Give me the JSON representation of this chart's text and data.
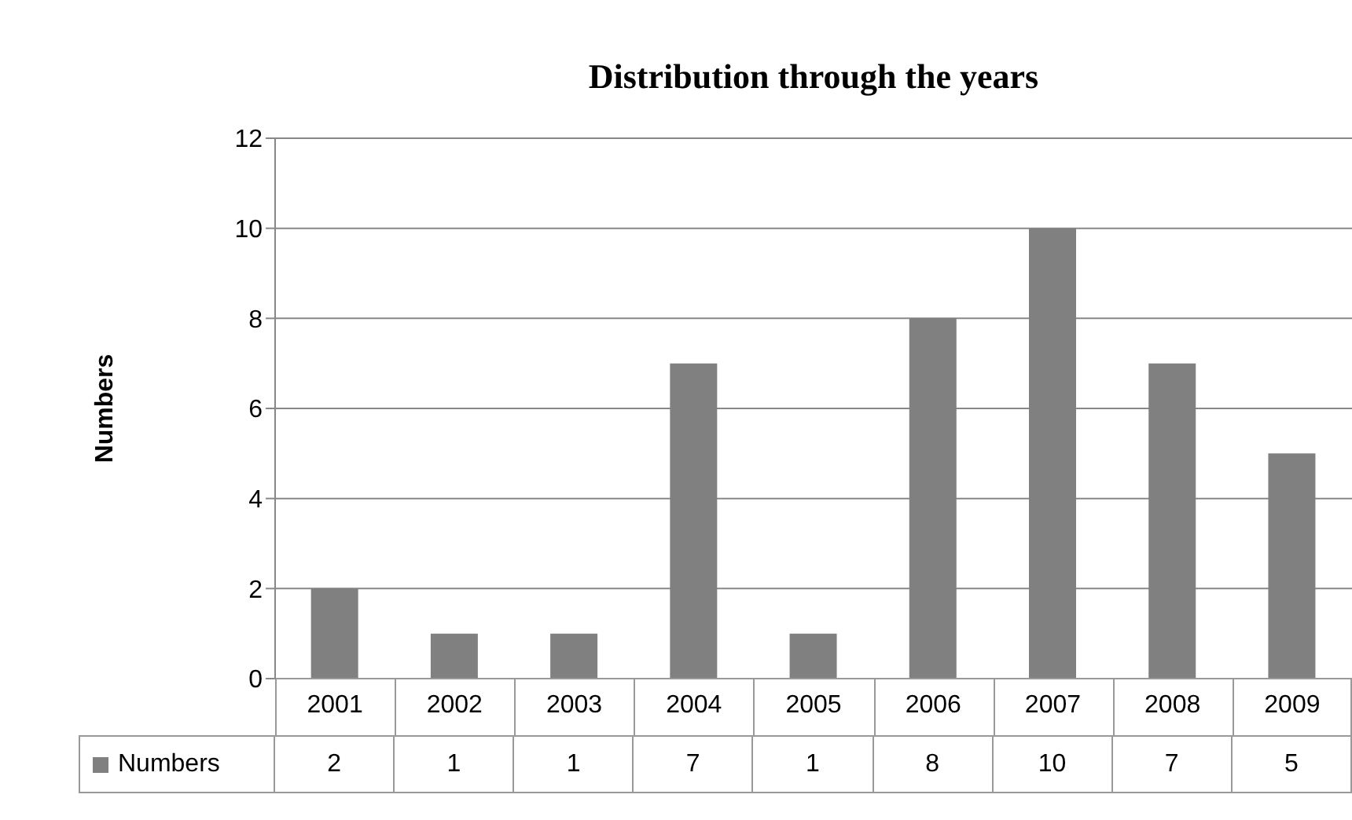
{
  "chart_data": {
    "type": "bar",
    "title": "Distribution through the years",
    "ylabel": "Numbers",
    "categories": [
      "2001",
      "2002",
      "2003",
      "2004",
      "2005",
      "2006",
      "2007",
      "2008",
      "2009"
    ],
    "series": [
      {
        "name": "Numbers",
        "color": "#808080",
        "values": [
          2,
          1,
          1,
          7,
          1,
          8,
          10,
          7,
          5
        ]
      }
    ],
    "ylim": [
      0,
      12
    ],
    "yticks": [
      0,
      2,
      4,
      6,
      8,
      10,
      12
    ],
    "grid": "y",
    "legend": "bottom",
    "data_labels": true
  }
}
